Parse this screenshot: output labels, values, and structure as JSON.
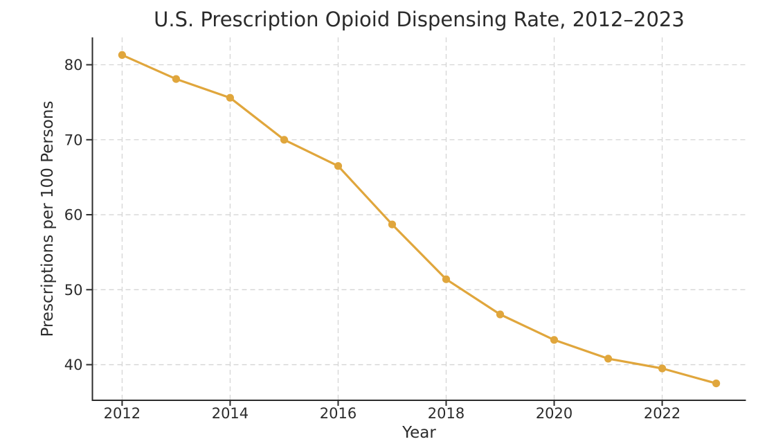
{
  "figure": {
    "title": "U.S. Prescription Opioid Dispensing Rate, 2012–2023",
    "xlabel": "Year",
    "ylabel": "Prescriptions per 100 Persons"
  },
  "chart_data": {
    "type": "line",
    "title": "U.S. Prescription Opioid Dispensing Rate, 2012–2023",
    "xlabel": "Year",
    "ylabel": "Prescriptions per 100 Persons",
    "x": [
      2012,
      2013,
      2014,
      2015,
      2016,
      2017,
      2018,
      2019,
      2020,
      2021,
      2022,
      2023
    ],
    "y": [
      81.3,
      78.1,
      75.6,
      70.0,
      66.5,
      58.7,
      51.4,
      46.7,
      43.3,
      40.8,
      39.5,
      37.5
    ],
    "xticks": [
      2012,
      2014,
      2016,
      2018,
      2020,
      2022
    ],
    "yticks": [
      40,
      50,
      60,
      70,
      80
    ],
    "xlim": [
      2011.45,
      2023.55
    ],
    "ylim": [
      35.25,
      83.65
    ],
    "grid": true,
    "grid_style": "dashed",
    "legend": "none",
    "marker": "circle",
    "colors": {
      "line": "#E0A63C",
      "marker": "#E0A63C",
      "grid": "#d5d5d5",
      "spine": "#2b2b2b",
      "text": "#2b2b2b",
      "background": "#ffffff"
    }
  }
}
